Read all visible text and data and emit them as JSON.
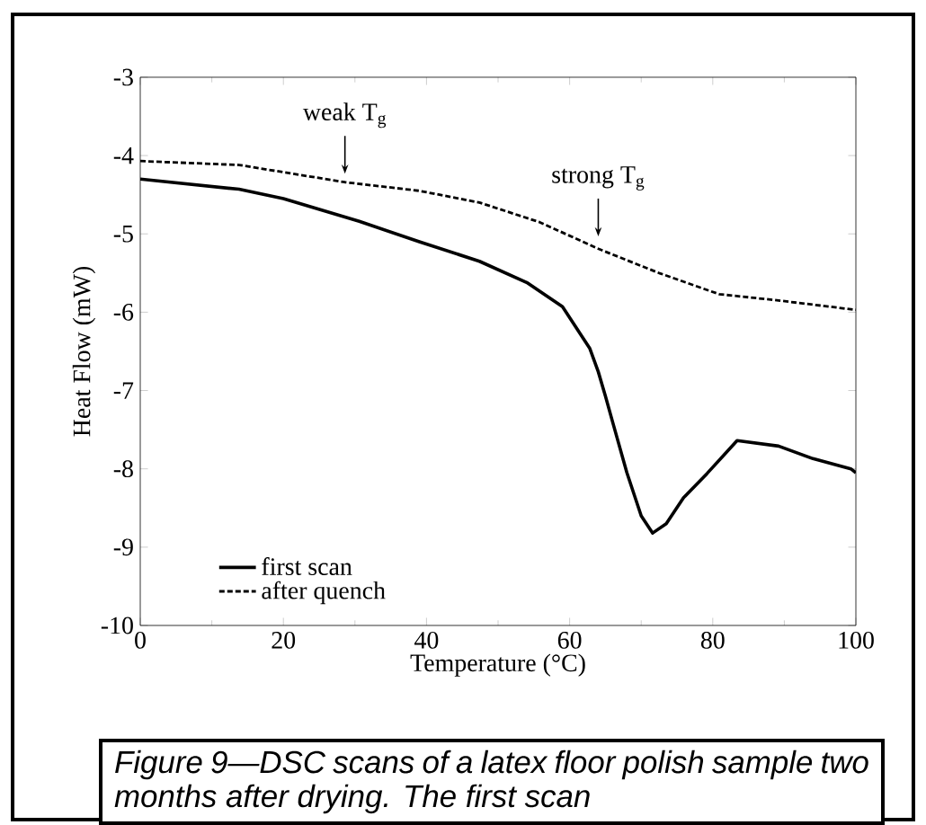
{
  "chart_data": {
    "type": "line",
    "xlabel": "Temperature (°C)",
    "ylabel": "Heat Flow (mW)",
    "xlim": [
      0,
      100
    ],
    "ylim": [
      -10,
      -3
    ],
    "xticks": [
      0,
      20,
      40,
      60,
      80,
      100
    ],
    "yticks": [
      -10,
      -9,
      -8,
      -7,
      -6,
      -5,
      -4,
      -3
    ],
    "legend": "bottom left",
    "grid": false,
    "marker": "none",
    "series": [
      {
        "name": "first scan",
        "color": "#000000",
        "line_style": "solid",
        "x": [
          0,
          13.8,
          20,
          30.6,
          39,
          47.4,
          54,
          59,
          62.8,
          64,
          65,
          66,
          68,
          70,
          71.6,
          73.5,
          75.9,
          79.2,
          83.4,
          89.2,
          94,
          99.3,
          100
        ],
        "values": [
          -4.3,
          -4.43,
          -4.55,
          -4.84,
          -5.1,
          -5.35,
          -5.62,
          -5.93,
          -6.46,
          -6.76,
          -7.07,
          -7.4,
          -8.05,
          -8.6,
          -8.82,
          -8.7,
          -8.37,
          -8.06,
          -7.64,
          -7.71,
          -7.87,
          -8.0,
          -8.05
        ]
      },
      {
        "name": "after quench",
        "color": "#000000",
        "line_style": "dashed",
        "x": [
          0,
          13.8,
          28.6,
          39,
          47.4,
          55.8,
          64,
          72.5,
          80.9,
          89.2,
          100
        ],
        "values": [
          -4.07,
          -4.12,
          -4.34,
          -4.45,
          -4.6,
          -4.85,
          -5.19,
          -5.5,
          -5.77,
          -5.85,
          -5.97
        ]
      }
    ],
    "annotations": [
      {
        "text": "weak T$_{g}$",
        "x": 28.6,
        "y": -4.3
      },
      {
        "text": "strong T$_{g}$",
        "x": 64,
        "y": -5.1
      },
      "Figure 9—DSC scans of a latex floor polish sample two months after drying. The first scan"
    ]
  }
}
